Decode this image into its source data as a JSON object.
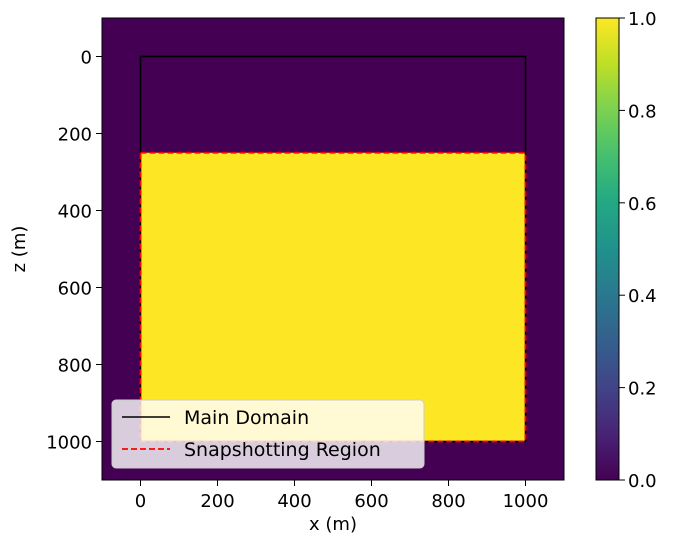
{
  "chart_data": {
    "type": "heatmap",
    "colormap": "viridis",
    "colors": {
      "low": "#440154",
      "high": "#fde725",
      "main_domain": "#000000",
      "snapshot_region": "#ff0000"
    },
    "title": "",
    "xlabel": "x (m)",
    "ylabel": "z (m)",
    "xlim": [
      -100,
      1100
    ],
    "ylim": [
      1100,
      -100
    ],
    "y_inverted": true,
    "xticks": [
      0,
      200,
      400,
      600,
      800,
      1000
    ],
    "yticks": [
      0,
      200,
      400,
      600,
      800,
      1000
    ],
    "background_value": 0.0,
    "filled_region": {
      "x": [
        0,
        1000
      ],
      "z": [
        250,
        1000
      ],
      "value": 1.0
    },
    "main_domain": {
      "x": [
        0,
        1000
      ],
      "z": [
        0,
        1000
      ]
    },
    "snapshotting_region": {
      "x": [
        0,
        1000
      ],
      "z": [
        250,
        1000
      ]
    },
    "legend": {
      "placement": "lower-left",
      "entries": [
        {
          "label": "Main Domain",
          "style": "solid",
          "color": "#000000"
        },
        {
          "label": "Snapshotting Region",
          "style": "dashed",
          "color": "#ff0000"
        }
      ]
    },
    "colorbar": {
      "range": [
        0.0,
        1.0
      ],
      "ticks": [
        0.0,
        0.2,
        0.4,
        0.6,
        0.8,
        1.0
      ],
      "tick_labels": [
        "0.0",
        "0.2",
        "0.4",
        "0.6",
        "0.8",
        "1.0"
      ]
    },
    "grid": false
  }
}
